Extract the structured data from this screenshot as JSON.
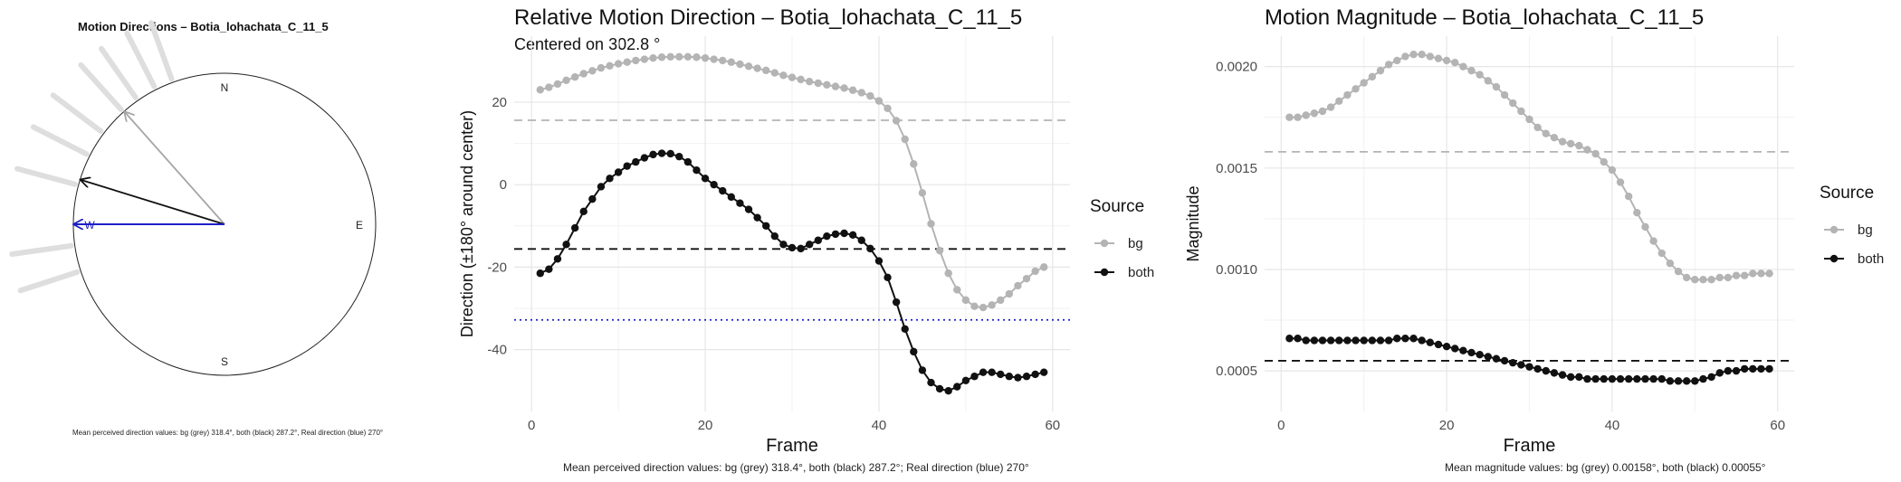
{
  "chart_data": [
    {
      "type": "compass",
      "title": "Motion Directions – Botia_lohachata_C_11_5",
      "compass_labels": {
        "n": "N",
        "e": "E",
        "s": "S",
        "w": "W"
      },
      "history_angles_deg": [
        340,
        333,
        325,
        318,
        307,
        297,
        285,
        262,
        252
      ],
      "arrows": [
        {
          "source": "bg",
          "angle_deg": 318.4,
          "color": "#a6a6a6"
        },
        {
          "source": "both",
          "angle_deg": 287.2,
          "color": "#111111"
        },
        {
          "source": "real",
          "angle_deg": 270,
          "color": "#1f1fc8"
        }
      ],
      "caption": "Mean perceived direction values: bg (grey) 318.4°, both (black) 287.2°, Real direction (blue) 270°"
    },
    {
      "type": "line",
      "title": "Relative Motion Direction – Botia_lohachata_C_11_5",
      "subtitle": "Centered on  302.8 °",
      "xlabel": "Frame",
      "ylabel": "Direction (±180° around center)",
      "xlim": [
        -2,
        62
      ],
      "ylim": [
        -55,
        36
      ],
      "x_ticks": [
        0,
        20,
        40,
        60
      ],
      "y_ticks": [
        -40,
        -20,
        0,
        20
      ],
      "grid": true,
      "legend_title": "Source",
      "legend_position": "right",
      "x": [
        1,
        2,
        3,
        4,
        5,
        6,
        7,
        8,
        9,
        10,
        11,
        12,
        13,
        14,
        15,
        16,
        17,
        18,
        19,
        20,
        21,
        22,
        23,
        24,
        25,
        26,
        27,
        28,
        29,
        30,
        31,
        32,
        33,
        34,
        35,
        36,
        37,
        38,
        39,
        40,
        41,
        42,
        43,
        44,
        45,
        46,
        47,
        48,
        49,
        50,
        51,
        52,
        53,
        54,
        55,
        56,
        57,
        58,
        59
      ],
      "series": [
        {
          "name": "bg",
          "color": "#b4b4b4",
          "values": [
            23.0,
            23.6,
            24.4,
            25.3,
            26.1,
            26.9,
            27.6,
            28.3,
            28.8,
            29.3,
            29.7,
            30.1,
            30.4,
            30.7,
            30.9,
            31.0,
            31.0,
            31.0,
            30.9,
            30.7,
            30.4,
            30.1,
            29.7,
            29.2,
            28.7,
            28.2,
            27.7,
            27.1,
            26.5,
            26.0,
            25.5,
            25.0,
            24.6,
            24.2,
            23.8,
            23.4,
            22.9,
            22.3,
            21.5,
            20.3,
            18.5,
            15.5,
            11.0,
            5.0,
            -2.0,
            -9.5,
            -16.0,
            -21.5,
            -25.5,
            -28.0,
            -29.5,
            -29.8,
            -29.2,
            -28.0,
            -26.5,
            -24.5,
            -22.8,
            -21.0,
            -20.0
          ]
        },
        {
          "name": "both",
          "color": "#111111",
          "values": [
            -21.5,
            -20.5,
            -18.0,
            -14.5,
            -10.5,
            -6.5,
            -3.5,
            -0.5,
            1.5,
            3.0,
            4.5,
            5.5,
            6.5,
            7.3,
            7.6,
            7.5,
            6.8,
            5.5,
            3.5,
            1.5,
            0.0,
            -1.5,
            -3.0,
            -4.5,
            -6.0,
            -8.0,
            -10.0,
            -12.5,
            -14.5,
            -15.3,
            -15.5,
            -14.5,
            -13.5,
            -12.5,
            -12.0,
            -11.8,
            -12.2,
            -13.5,
            -15.5,
            -18.5,
            -22.5,
            -28.5,
            -35.0,
            -40.5,
            -45.0,
            -48.0,
            -49.5,
            -50.0,
            -49.0,
            -47.5,
            -46.5,
            -45.5,
            -45.5,
            -46.0,
            -46.5,
            -46.8,
            -46.5,
            -46.0,
            -45.5
          ]
        }
      ],
      "hlines": [
        {
          "source": "bg",
          "y": 15.6,
          "color": "#b4b4b4",
          "style": "dashed"
        },
        {
          "source": "both",
          "y": -15.6,
          "color": "#111111",
          "style": "dashed"
        },
        {
          "source": "real",
          "y": -32.8,
          "color": "#1f1fc8",
          "style": "dotted"
        }
      ],
      "caption": "Mean perceived direction values: bg (grey) 318.4°, both (black) 287.2°; Real direction (blue) 270°"
    },
    {
      "type": "line",
      "title": "Motion Magnitude – Botia_lohachata_C_11_5",
      "xlabel": "Frame",
      "ylabel": "Magnitude",
      "xlim": [
        -2,
        62
      ],
      "ylim": [
        0.0003,
        0.00215
      ],
      "x_ticks": [
        0,
        20,
        40,
        60
      ],
      "y_ticks": [
        0.0005,
        0.001,
        0.0015,
        0.002
      ],
      "y_tick_labels": [
        "0.0005",
        "0.0010",
        "0.0015",
        "0.0020"
      ],
      "grid": true,
      "legend_title": "Source",
      "legend_position": "right",
      "x": [
        1,
        2,
        3,
        4,
        5,
        6,
        7,
        8,
        9,
        10,
        11,
        12,
        13,
        14,
        15,
        16,
        17,
        18,
        19,
        20,
        21,
        22,
        23,
        24,
        25,
        26,
        27,
        28,
        29,
        30,
        31,
        32,
        33,
        34,
        35,
        36,
        37,
        38,
        39,
        40,
        41,
        42,
        43,
        44,
        45,
        46,
        47,
        48,
        49,
        50,
        51,
        52,
        53,
        54,
        55,
        56,
        57,
        58,
        59
      ],
      "series": [
        {
          "name": "bg",
          "color": "#b4b4b4",
          "values": [
            0.00175,
            0.00175,
            0.00176,
            0.00177,
            0.00178,
            0.0018,
            0.00183,
            0.00186,
            0.00189,
            0.00192,
            0.00195,
            0.00198,
            0.00201,
            0.00203,
            0.00205,
            0.00206,
            0.00206,
            0.00205,
            0.00204,
            0.00203,
            0.00202,
            0.002,
            0.00198,
            0.00196,
            0.00193,
            0.0019,
            0.00186,
            0.00182,
            0.00178,
            0.00174,
            0.0017,
            0.00167,
            0.00165,
            0.00163,
            0.00162,
            0.00161,
            0.00159,
            0.00157,
            0.00153,
            0.00149,
            0.00143,
            0.00136,
            0.00128,
            0.00121,
            0.00114,
            0.00108,
            0.00103,
            0.00099,
            0.00096,
            0.00095,
            0.00095,
            0.00095,
            0.00096,
            0.00096,
            0.00097,
            0.00097,
            0.00098,
            0.00098,
            0.00098
          ]
        },
        {
          "name": "both",
          "color": "#111111",
          "values": [
            0.00066,
            0.00066,
            0.00065,
            0.00065,
            0.00065,
            0.00065,
            0.00065,
            0.00065,
            0.00065,
            0.00065,
            0.00065,
            0.00065,
            0.00065,
            0.00066,
            0.00066,
            0.00066,
            0.00065,
            0.00064,
            0.00063,
            0.00062,
            0.00061,
            0.0006,
            0.00059,
            0.00058,
            0.00057,
            0.00056,
            0.00055,
            0.00054,
            0.00053,
            0.00052,
            0.00051,
            0.0005,
            0.00049,
            0.00048,
            0.00047,
            0.00047,
            0.00046,
            0.00046,
            0.00046,
            0.00046,
            0.00046,
            0.00046,
            0.00046,
            0.00046,
            0.00046,
            0.00046,
            0.00045,
            0.00045,
            0.00045,
            0.00045,
            0.00046,
            0.00047,
            0.00049,
            0.0005,
            0.0005,
            0.00051,
            0.00051,
            0.00051,
            0.00051
          ]
        }
      ],
      "hlines": [
        {
          "source": "bg",
          "y": 0.00158,
          "color": "#b4b4b4",
          "style": "dashed"
        },
        {
          "source": "both",
          "y": 0.00055,
          "color": "#111111",
          "style": "dashed"
        }
      ],
      "caption": "Mean magnitude values: bg (grey) 0.00158°, both (black) 0.00055°"
    }
  ]
}
